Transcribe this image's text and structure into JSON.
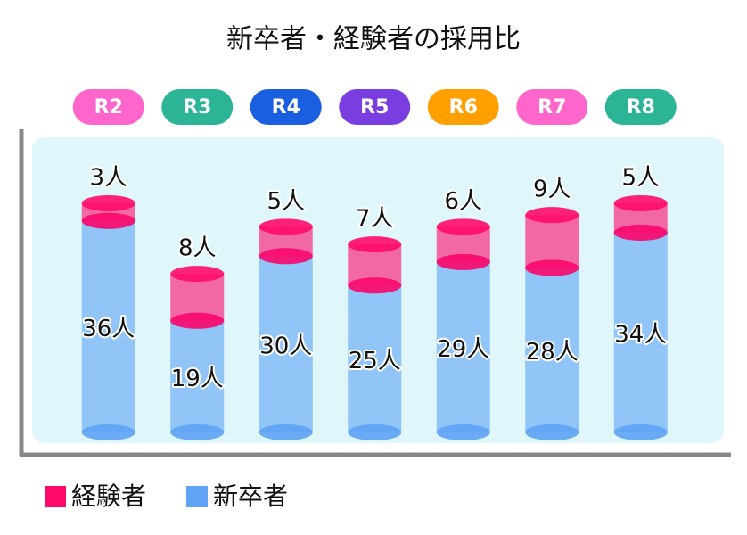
{
  "chart_data": {
    "type": "stacked-cylinder",
    "title": "新卒者・経験者の採用比",
    "categories": [
      "R2",
      "R3",
      "R4",
      "R5",
      "R6",
      "R7",
      "R8"
    ],
    "category_colors": [
      "#ff66cc",
      "#2bb596",
      "#1a5fe0",
      "#7a3ee0",
      "#ffa000",
      "#ff66cc",
      "#2bb596"
    ],
    "series": [
      {
        "name": "経験者",
        "color": "#ff0a6c",
        "values": [
          3,
          8,
          5,
          7,
          6,
          9,
          5
        ],
        "value_labels": [
          "3人",
          "8人",
          "5人",
          "7人",
          "6人",
          "9人",
          "5人"
        ]
      },
      {
        "name": "新卒者",
        "color": "#5ea3f5",
        "values": [
          36,
          19,
          30,
          25,
          29,
          28,
          34
        ],
        "value_labels": [
          "36人",
          "19人",
          "30人",
          "25人",
          "29人",
          "28人",
          "34人"
        ]
      }
    ]
  }
}
